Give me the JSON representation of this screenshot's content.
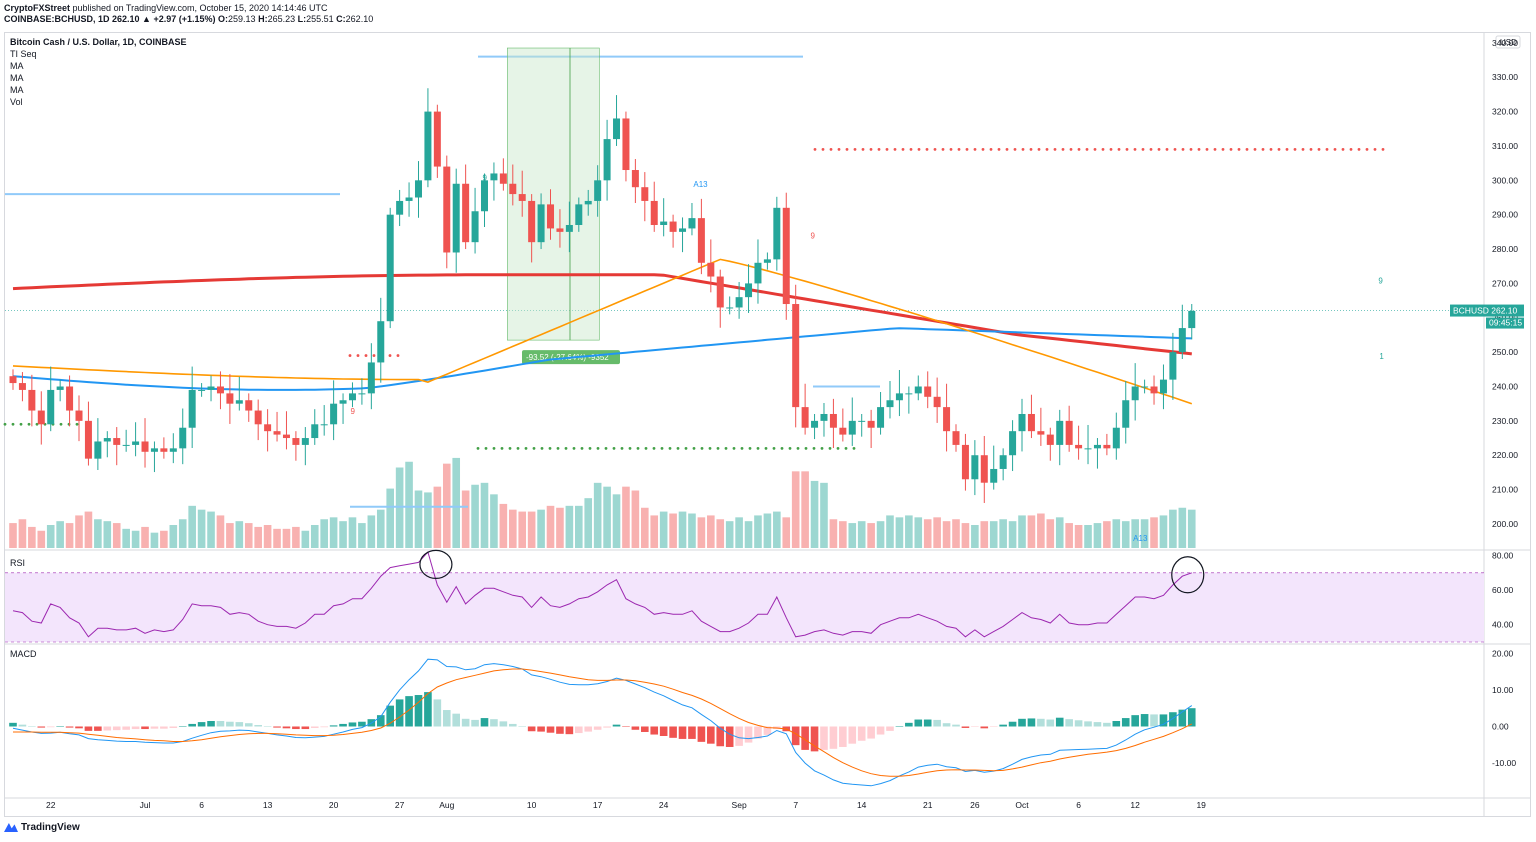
{
  "header": {
    "publisher": "CryptoFXStreet",
    "published_text": "published on TradingView.com, October 15, 2020 14:14:46 UTC",
    "symbol_line": "COINBASE:BCHUSD, 1D",
    "close_change": "262.10 ▲ +2.97 (+1.15%)",
    "o_label": "O:",
    "o_value": "259.13",
    "h_label": "H:",
    "h_value": "265.23",
    "l_label": "L:",
    "l_value": "255.51",
    "c_label": "C:",
    "c_value": "262.10"
  },
  "legend": [
    "Bitcoin Cash / U.S. Dollar, 1D, COINBASE",
    "TI Seq",
    "MA",
    "MA",
    "MA",
    "Vol"
  ],
  "currency_label": "USD",
  "price_tag": {
    "symbol": "BCHUSD",
    "value": "262.10",
    "countdown": "09:45:15"
  },
  "measure_label": "-93.52 (-27.64%) -9352",
  "colors": {
    "up": "#26a69a",
    "down": "#ef5350",
    "ma_red": "#e53935",
    "ma_blue": "#2196f3",
    "ma_orange": "#ff9800",
    "rsi_band": "#f3e5fc",
    "rsi_line": "#9c27b0",
    "macd_line": "#2196f3",
    "signal_line": "#ff6d00",
    "tag_bg": "#26a69a"
  },
  "xaxis_ticks": [
    "22",
    "Jul",
    "6",
    "13",
    "20",
    "27",
    "Aug",
    "10",
    "17",
    "24",
    "Sep",
    "7",
    "14",
    "21",
    "26",
    "Oct",
    "6",
    "12",
    "19"
  ],
  "chart_data": [
    {
      "type": "candlestick",
      "title": "Bitcoin Cash / U.S. Dollar, 1D, COINBASE",
      "ylabel": "USD",
      "ylim": [
        193,
        342
      ],
      "yticks": [
        200,
        210,
        220,
        230,
        240,
        250,
        260,
        270,
        280,
        290,
        300,
        310,
        320,
        330,
        340
      ],
      "ytick_labels": [
        "200.00",
        "210.00",
        "220.00",
        "230.00",
        "240.00",
        "250.00",
        "260.00",
        "270.00",
        "280.00",
        "290.00",
        "300.00",
        "310.00",
        "320.00",
        "330.00",
        "340.00"
      ],
      "date_range": [
        "2020-06-17",
        "2020-10-15"
      ],
      "closes": [
        241,
        239,
        233,
        229,
        239,
        240,
        233,
        230,
        219,
        224,
        225,
        223,
        223,
        224,
        221,
        222,
        221,
        222,
        228,
        239,
        239,
        240,
        238,
        235,
        236,
        233,
        229,
        227,
        226,
        225,
        223,
        225,
        229,
        229,
        235,
        236,
        238,
        238,
        247,
        259,
        290,
        294,
        295,
        300,
        320,
        304,
        279,
        299,
        282,
        291,
        300,
        302,
        299,
        296,
        294,
        282,
        293,
        286,
        285,
        287,
        293,
        294,
        300,
        312,
        318,
        303,
        298,
        294,
        287,
        288,
        285,
        286,
        289,
        276,
        272,
        263,
        263,
        266,
        270,
        276,
        277,
        292,
        264,
        234,
        228,
        230,
        232,
        228,
        226,
        230,
        230,
        228,
        234,
        236,
        238,
        238,
        240,
        237,
        234,
        227,
        223,
        213,
        220,
        212,
        216,
        220,
        227,
        232,
        227,
        226,
        223,
        230,
        223,
        222,
        222,
        223,
        222,
        228,
        236,
        240,
        240,
        238,
        242,
        250,
        257,
        262
      ],
      "ma_red": {
        "start": 268.5,
        "end": 246
      },
      "ma_blue": {
        "start": 243,
        "end": 253
      },
      "ma_orange": {
        "start": 246,
        "end": 234.5
      },
      "annotations": [
        "9",
        "9",
        "A13",
        "9",
        "A13",
        "9",
        "1"
      ],
      "volume": [
        13,
        15,
        11,
        9,
        12,
        14,
        13,
        17,
        19,
        15,
        14,
        13,
        10,
        9,
        11,
        8,
        9,
        12,
        15,
        22,
        20,
        19,
        17,
        13,
        14,
        13,
        11,
        12,
        10,
        10,
        11,
        9,
        12,
        15,
        16,
        14,
        16,
        13,
        17,
        20,
        31,
        42,
        45,
        30,
        29,
        32,
        44,
        47,
        30,
        33,
        34,
        28,
        23,
        20,
        19,
        19,
        20,
        22,
        21,
        22,
        22,
        26,
        34,
        32,
        28,
        32,
        30,
        21,
        17,
        19,
        18,
        19,
        18,
        16,
        17,
        15,
        14,
        16,
        14,
        17,
        18,
        19,
        16,
        40,
        40,
        35,
        34,
        15,
        14,
        13,
        14,
        13,
        14,
        17,
        16,
        17,
        16,
        15,
        16,
        14,
        15,
        13,
        12,
        14,
        14,
        15,
        14,
        17,
        17,
        18,
        15,
        16,
        13,
        12,
        12,
        13,
        14,
        15,
        14,
        15,
        15,
        16,
        17,
        20,
        21,
        20
      ]
    },
    {
      "type": "line",
      "title": "RSI",
      "ylim": [
        30,
        82
      ],
      "yticks": [
        40,
        60,
        80
      ],
      "ytick_labels": [
        "40.00",
        "60.00",
        "80.00"
      ],
      "bands": [
        30,
        70
      ],
      "values": [
        48,
        47,
        42,
        41,
        52,
        50,
        44,
        41,
        33,
        38,
        38,
        37,
        37,
        38,
        35,
        37,
        36,
        37,
        43,
        52,
        51,
        51,
        50,
        46,
        47,
        46,
        42,
        40,
        39,
        39,
        38,
        41,
        46,
        46,
        51,
        52,
        55,
        55,
        61,
        68,
        73,
        74,
        75,
        76,
        82,
        63,
        53,
        62,
        52,
        57,
        61,
        61,
        59,
        57,
        56,
        50,
        56,
        51,
        50,
        52,
        55,
        56,
        59,
        63,
        66,
        55,
        52,
        50,
        46,
        47,
        46,
        46,
        48,
        42,
        39,
        36,
        36,
        38,
        41,
        46,
        46,
        56,
        44,
        33,
        34,
        36,
        37,
        35,
        34,
        36,
        36,
        35,
        40,
        42,
        44,
        44,
        46,
        44,
        42,
        39,
        38,
        33,
        37,
        33,
        36,
        39,
        43,
        47,
        44,
        43,
        41,
        46,
        41,
        40,
        40,
        41,
        41,
        46,
        51,
        56,
        56,
        55,
        57,
        63,
        68,
        70
      ]
    },
    {
      "type": "bar+line",
      "title": "MACD",
      "ylim": [
        -19,
        22
      ],
      "yticks": [
        -10,
        0,
        10,
        20
      ],
      "ytick_labels": [
        "-10.00",
        "0.00",
        "10.00",
        "20.00"
      ],
      "series": [
        {
          "name": "MACD",
          "values": [
            -0.5,
            -1.0,
            -1.5,
            -1.9,
            -1.8,
            -1.6,
            -2.0,
            -2.3,
            -3.3,
            -3.6,
            -3.8,
            -4.0,
            -4.1,
            -4.1,
            -4.3,
            -4.4,
            -4.5,
            -4.5,
            -4.1,
            -3.2,
            -2.4,
            -1.7,
            -1.3,
            -1.2,
            -1.0,
            -1.1,
            -1.5,
            -1.9,
            -2.3,
            -2.6,
            -3.0,
            -3.1,
            -2.9,
            -2.7,
            -2.1,
            -1.5,
            -0.8,
            -0.3,
            0.9,
            2.7,
            6.6,
            10.0,
            12.8,
            15.2,
            18.4,
            18.2,
            16.4,
            16.3,
            15.5,
            15.8,
            16.9,
            17.2,
            16.9,
            16.4,
            15.7,
            14.1,
            13.6,
            12.9,
            12.1,
            11.5,
            11.4,
            11.4,
            11.7,
            12.3,
            13.2,
            12.6,
            11.6,
            10.6,
            9.4,
            8.4,
            7.1,
            5.9,
            5.1,
            3.3,
            1.6,
            -0.5,
            -2.1,
            -3.1,
            -3.3,
            -3.0,
            -2.6,
            -1.1,
            -2.0,
            -7.1,
            -10.0,
            -12.1,
            -13.3,
            -14.6,
            -15.5,
            -15.8,
            -16.0,
            -16.2,
            -15.6,
            -14.8,
            -13.5,
            -12.4,
            -11.1,
            -10.6,
            -10.3,
            -11.0,
            -11.3,
            -12.3,
            -12.0,
            -12.5,
            -12.2,
            -11.5,
            -10.3,
            -9.0,
            -8.3,
            -7.8,
            -7.6,
            -6.5,
            -6.4,
            -6.3,
            -6.2,
            -6.1,
            -6.0,
            -5.1,
            -3.7,
            -2.1,
            -0.9,
            -0.2,
            0.6,
            2.2,
            4.0,
            5.7
          ]
        },
        {
          "name": "Signal",
          "values": [
            -1.5,
            -1.5,
            -1.5,
            -1.6,
            -1.6,
            -1.6,
            -1.7,
            -1.8,
            -2.1,
            -2.4,
            -2.7,
            -3.0,
            -3.2,
            -3.4,
            -3.6,
            -3.8,
            -3.9,
            -4.1,
            -4.1,
            -3.9,
            -3.6,
            -3.2,
            -2.8,
            -2.5,
            -2.2,
            -2.0,
            -1.9,
            -1.9,
            -2.0,
            -2.1,
            -2.3,
            -2.4,
            -2.5,
            -2.5,
            -2.4,
            -2.2,
            -1.9,
            -1.6,
            -1.1,
            -0.4,
            0.9,
            2.6,
            4.5,
            6.6,
            9.0,
            10.8,
            11.9,
            12.8,
            13.4,
            14.0,
            14.6,
            15.2,
            15.5,
            15.7,
            15.7,
            15.4,
            15.0,
            14.6,
            14.1,
            13.6,
            13.2,
            12.8,
            12.6,
            12.6,
            12.7,
            12.7,
            12.5,
            12.1,
            11.6,
            11.0,
            10.2,
            9.3,
            8.5,
            7.5,
            6.3,
            4.9,
            3.5,
            2.2,
            1.1,
            0.3,
            -0.3,
            -0.4,
            -0.7,
            -2.0,
            -3.6,
            -5.3,
            -6.9,
            -8.5,
            -9.9,
            -11.1,
            -12.1,
            -12.9,
            -13.4,
            -13.6,
            -13.6,
            -13.4,
            -13.0,
            -12.5,
            -12.1,
            -11.9,
            -11.8,
            -11.9,
            -11.9,
            -12.0,
            -12.1,
            -12.0,
            -11.6,
            -11.1,
            -10.5,
            -9.9,
            -9.5,
            -8.9,
            -8.4,
            -8.0,
            -7.6,
            -7.3,
            -7.0,
            -6.6,
            -6.0,
            -5.2,
            -4.3,
            -3.5,
            -2.7,
            -1.7,
            -0.6,
            0.7
          ]
        }
      ]
    }
  ]
}
